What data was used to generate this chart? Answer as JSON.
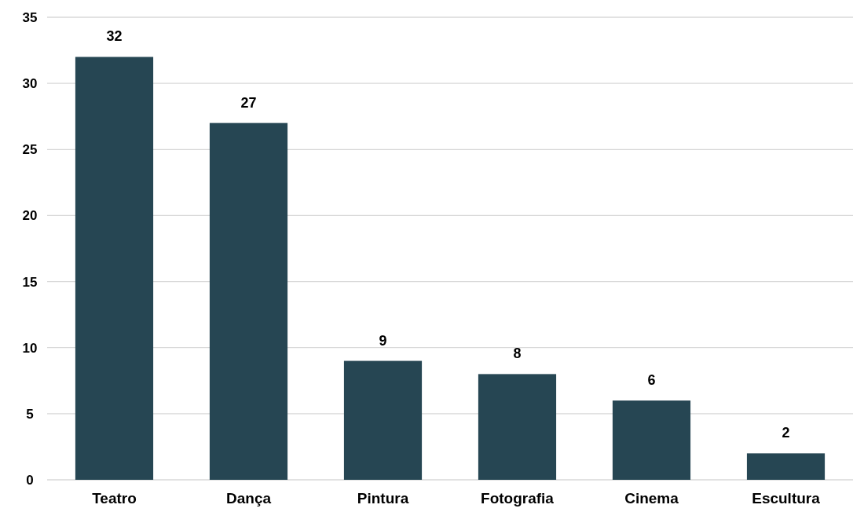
{
  "chart_data": {
    "type": "bar",
    "categories": [
      "Teatro",
      "Dança",
      "Pintura",
      "Fotografia",
      "Cinema",
      "Escultura"
    ],
    "values": [
      32,
      27,
      9,
      8,
      6,
      2
    ],
    "color": "#264653",
    "ylim": [
      0,
      35
    ],
    "yticks": [
      0,
      5,
      10,
      15,
      20,
      25,
      30,
      35
    ],
    "grid": "y",
    "data_labels": true
  }
}
